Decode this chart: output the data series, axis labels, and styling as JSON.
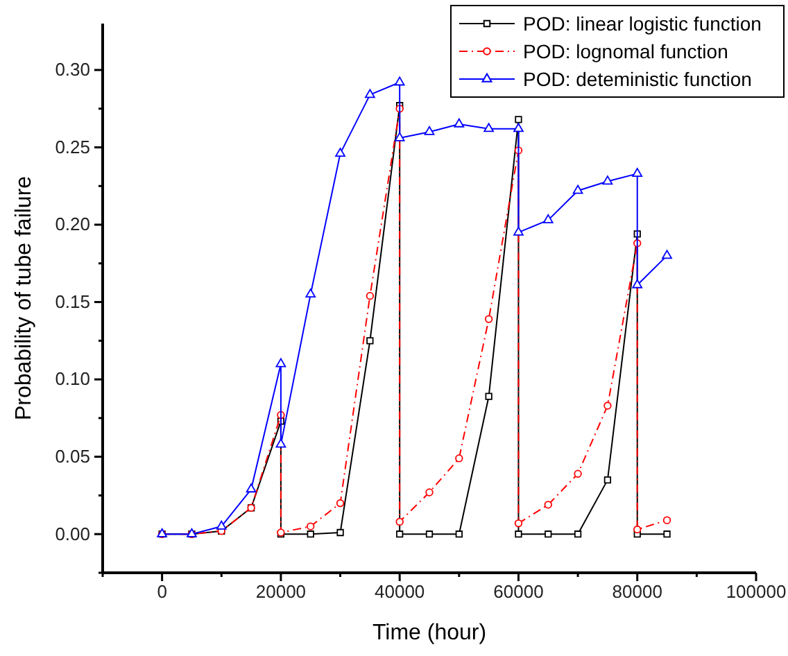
{
  "chart_data": {
    "type": "line",
    "xlabel": "Time (hour)",
    "ylabel": "Probability of tube failure",
    "xlim": [
      -10000,
      100000
    ],
    "ylim": [
      -0.025,
      0.33
    ],
    "xticks": [
      {
        "value": -10000,
        "label": null
      },
      0,
      {
        "value": 10000,
        "label": null
      },
      20000,
      {
        "value": 30000,
        "label": null
      },
      40000,
      {
        "value": 50000,
        "label": null
      },
      60000,
      {
        "value": 70000,
        "label": null
      },
      80000,
      {
        "value": 90000,
        "label": null
      },
      100000
    ],
    "yticks": [
      {
        "value": -0.025,
        "label": null
      },
      {
        "value": 0,
        "label": "0.00"
      },
      {
        "value": 0.025,
        "label": null
      },
      {
        "value": 0.05,
        "label": "0.05"
      },
      {
        "value": 0.075,
        "label": null
      },
      {
        "value": 0.1,
        "label": "0.10"
      },
      {
        "value": 0.125,
        "label": null
      },
      {
        "value": 0.15,
        "label": "0.15"
      },
      {
        "value": 0.175,
        "label": null
      },
      {
        "value": 0.2,
        "label": "0.20"
      },
      {
        "value": 0.225,
        "label": null
      },
      {
        "value": 0.25,
        "label": "0.25"
      },
      {
        "value": 0.275,
        "label": null
      },
      {
        "value": 0.3,
        "label": "0.30"
      }
    ],
    "x": [
      0,
      5000,
      10000,
      15000,
      20000,
      20000,
      25000,
      30000,
      35000,
      40000,
      40000,
      45000,
      50000,
      55000,
      60000,
      60000,
      65000,
      70000,
      75000,
      80000,
      80000,
      85000
    ],
    "legend": "top right",
    "grid": false,
    "series": [
      {
        "name": "POD: linear logistic function",
        "color": "#000000",
        "marker": "square",
        "line_style": "solid",
        "values": [
          0,
          0,
          0.002,
          0.017,
          0.073,
          0,
          0,
          0.001,
          0.125,
          0.277,
          0,
          0,
          0,
          0.089,
          0.268,
          0,
          0,
          0,
          0.035,
          0.194,
          0,
          0
        ]
      },
      {
        "name": "POD: lognomal function",
        "color": "#ff0000",
        "marker": "circle",
        "line_style": "dashed",
        "values": [
          0,
          0,
          0.002,
          0.017,
          0.077,
          0.001,
          0.005,
          0.02,
          0.154,
          0.275,
          0.008,
          0.027,
          0.049,
          0.139,
          0.248,
          0.007,
          0.019,
          0.039,
          0.083,
          0.188,
          0.003,
          0.009
        ]
      },
      {
        "name": "POD: deteministic function",
        "color": "#0000ff",
        "marker": "triangle",
        "line_style": "solid",
        "values": [
          0,
          0,
          0.005,
          0.029,
          0.11,
          0.058,
          0.155,
          0.246,
          0.284,
          0.292,
          0.256,
          0.26,
          0.265,
          0.262,
          0.262,
          0.195,
          0.203,
          0.222,
          0.228,
          0.233,
          0.161,
          0.18
        ]
      }
    ]
  }
}
